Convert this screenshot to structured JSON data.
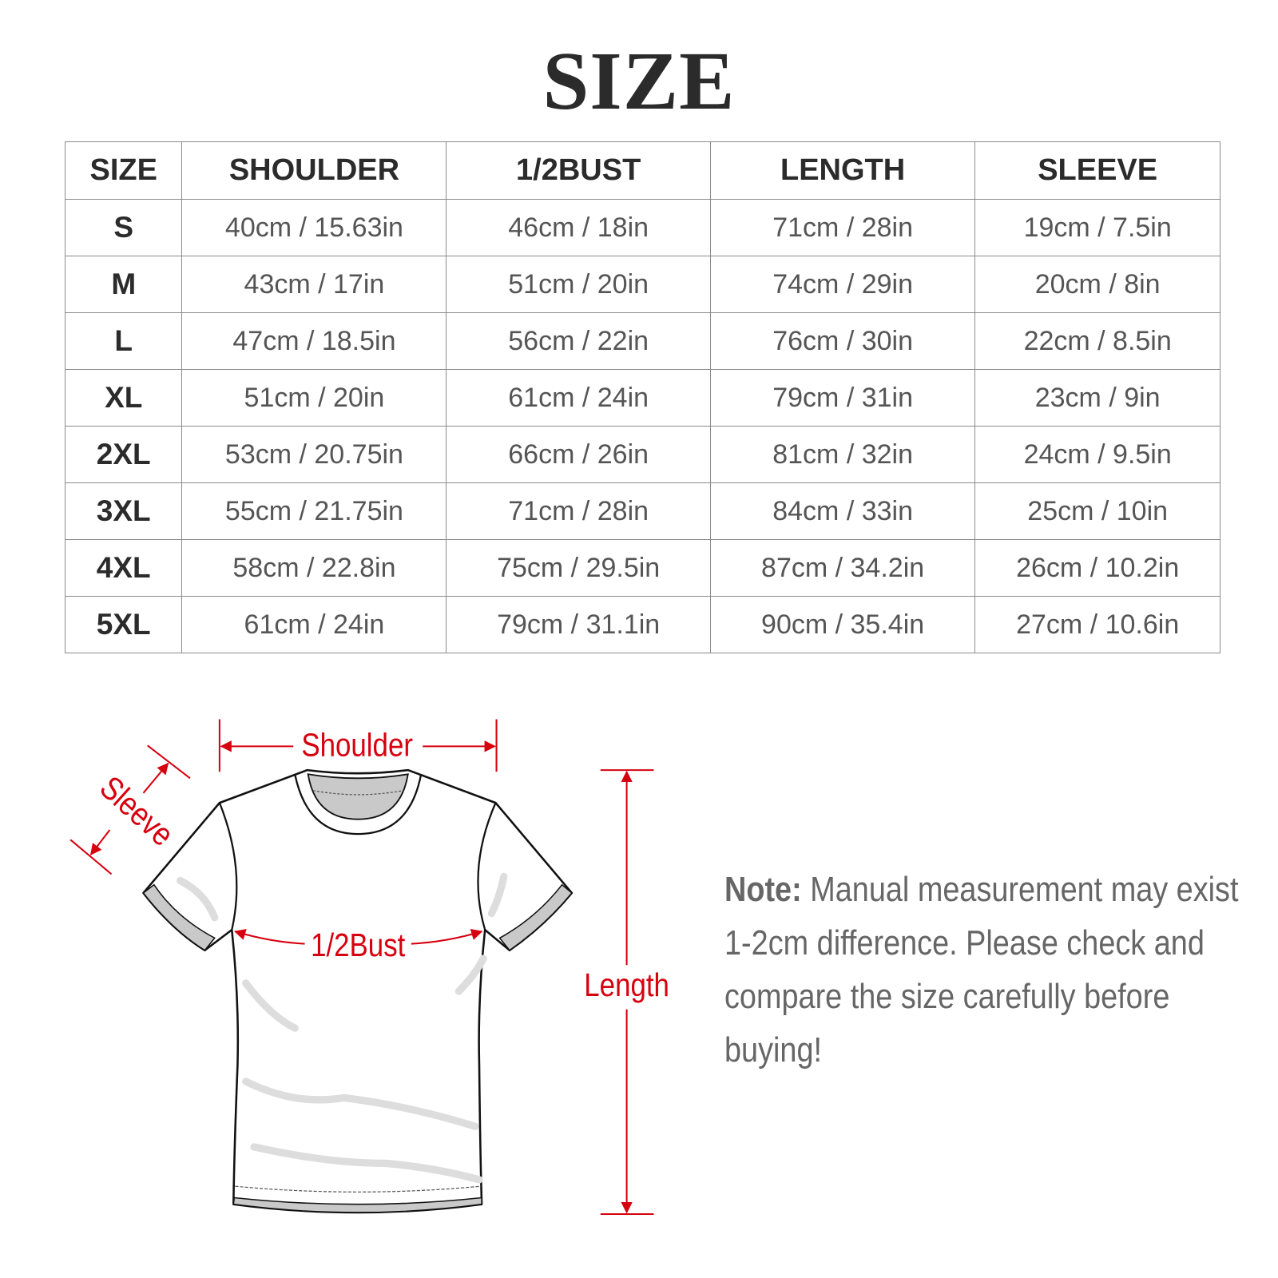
{
  "title": "SIZE",
  "table": {
    "headers": [
      "SIZE",
      "SHOULDER",
      "1/2BUST",
      "LENGTH",
      "SLEEVE"
    ],
    "rows": [
      [
        "S",
        "40cm / 15.63in",
        "46cm / 18in",
        "71cm / 28in",
        "19cm / 7.5in"
      ],
      [
        "M",
        "43cm / 17in",
        "51cm / 20in",
        "74cm / 29in",
        "20cm / 8in"
      ],
      [
        "L",
        "47cm / 18.5in",
        "56cm / 22in",
        "76cm / 30in",
        "22cm / 8.5in"
      ],
      [
        "XL",
        "51cm / 20in",
        "61cm / 24in",
        "79cm / 31in",
        "23cm / 9in"
      ],
      [
        "2XL",
        "53cm / 20.75in",
        "66cm / 26in",
        "81cm / 32in",
        "24cm / 9.5in"
      ],
      [
        "3XL",
        "55cm / 21.75in",
        "71cm / 28in",
        "84cm / 33in",
        "25cm / 10in"
      ],
      [
        "4XL",
        "58cm / 22.8in",
        "75cm / 29.5in",
        "87cm / 34.2in",
        "26cm / 10.2in"
      ],
      [
        "5XL",
        "61cm / 24in",
        "79cm / 31.1in",
        "90cm / 35.4in",
        "27cm / 10.6in"
      ]
    ]
  },
  "diagram": {
    "labels": {
      "shoulder": "Shoulder",
      "sleeve": "Sleeve",
      "bust": "1/2Bust",
      "length": "Length"
    },
    "accent_color": "#d7000f"
  },
  "note": {
    "label": "Note:",
    "text": " Manual measurement may exist 1-2cm difference. Please check and compare the size carefully before buying!"
  }
}
